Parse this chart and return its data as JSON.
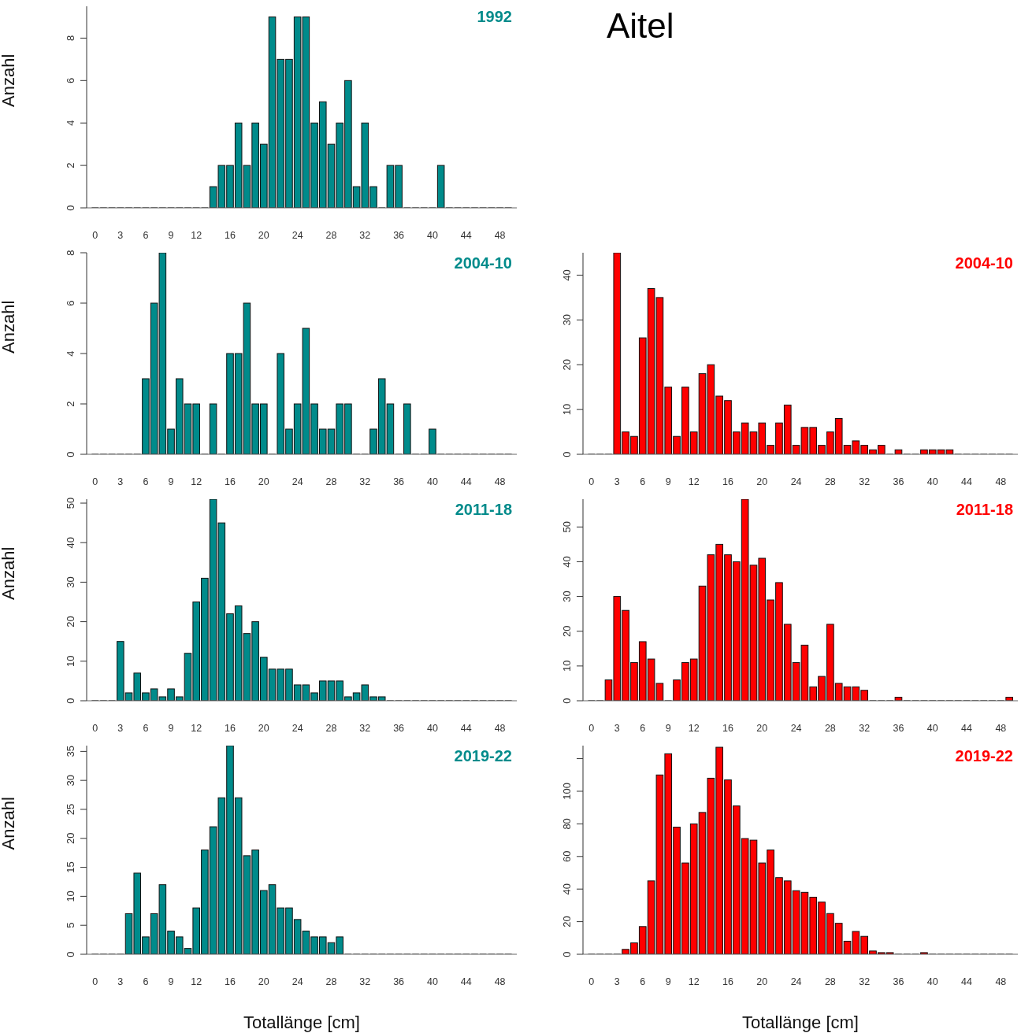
{
  "chart_data": [
    {
      "type": "bar",
      "title": "1992",
      "ylabel": "Anzahl",
      "annotations": [
        "Aitel"
      ],
      "x": [
        0,
        1,
        2,
        3,
        4,
        5,
        6,
        7,
        8,
        9,
        10,
        11,
        12,
        13,
        14,
        15,
        16,
        17,
        18,
        19,
        20,
        21,
        22,
        23,
        24,
        25,
        26,
        27,
        28,
        29,
        30,
        31,
        32,
        33,
        34,
        35,
        36,
        37,
        38,
        39,
        40,
        41,
        42,
        43,
        44,
        45,
        46,
        47,
        48,
        49
      ],
      "xlim": [
        -1,
        50
      ],
      "xticks": [
        0,
        3,
        6,
        9,
        12,
        16,
        20,
        24,
        28,
        32,
        36,
        40,
        44,
        48
      ],
      "color": "#008b8b",
      "ylim": [
        0,
        9.5
      ],
      "yticks": [
        0,
        2,
        4,
        6,
        8
      ],
      "values": [
        0,
        0,
        0,
        0,
        0,
        0,
        0,
        0,
        0,
        0,
        0,
        0,
        0,
        0,
        1,
        2,
        2,
        4,
        2,
        4,
        3,
        9,
        7,
        7,
        9,
        9,
        4,
        5,
        3,
        4,
        6,
        1,
        4,
        1,
        0,
        2,
        2,
        0,
        0,
        0,
        0,
        2,
        0,
        0,
        0,
        0,
        0,
        0,
        0,
        0
      ]
    },
    {
      "type": "bar",
      "title": "2004-10",
      "ylabel": "Anzahl",
      "x": [
        0,
        1,
        2,
        3,
        4,
        5,
        6,
        7,
        8,
        9,
        10,
        11,
        12,
        13,
        14,
        15,
        16,
        17,
        18,
        19,
        20,
        21,
        22,
        23,
        24,
        25,
        26,
        27,
        28,
        29,
        30,
        31,
        32,
        33,
        34,
        35,
        36,
        37,
        38,
        39,
        40,
        41,
        42,
        43,
        44,
        45,
        46,
        47,
        48,
        49
      ],
      "xlim": [
        -1,
        50
      ],
      "xticks": [
        0,
        3,
        6,
        9,
        12,
        16,
        20,
        24,
        28,
        32,
        36,
        40,
        44,
        48
      ],
      "color": "#008b8b",
      "ylim": [
        0,
        8
      ],
      "yticks": [
        0,
        2,
        4,
        6,
        8
      ],
      "values": [
        0,
        0,
        0,
        0,
        0,
        0,
        3,
        6,
        8,
        1,
        3,
        2,
        2,
        0,
        2,
        0,
        4,
        4,
        6,
        2,
        2,
        0,
        4,
        1,
        2,
        5,
        2,
        1,
        1,
        2,
        2,
        0,
        0,
        1,
        3,
        2,
        0,
        2,
        0,
        0,
        1,
        0,
        0,
        0,
        0,
        0,
        0,
        0,
        0,
        0
      ]
    },
    {
      "type": "bar",
      "title": "2004-10",
      "x": [
        0,
        1,
        2,
        3,
        4,
        5,
        6,
        7,
        8,
        9,
        10,
        11,
        12,
        13,
        14,
        15,
        16,
        17,
        18,
        19,
        20,
        21,
        22,
        23,
        24,
        25,
        26,
        27,
        28,
        29,
        30,
        31,
        32,
        33,
        34,
        35,
        36,
        37,
        38,
        39,
        40,
        41,
        42,
        43,
        44,
        45,
        46,
        47,
        48,
        49
      ],
      "xlim": [
        -1,
        50
      ],
      "xticks": [
        0,
        3,
        6,
        9,
        12,
        16,
        20,
        24,
        28,
        32,
        36,
        40,
        44,
        48
      ],
      "color": "#ff0000",
      "ylim": [
        0,
        45
      ],
      "yticks": [
        0,
        10,
        20,
        30,
        40
      ],
      "values": [
        0,
        0,
        0,
        45,
        5,
        4,
        26,
        37,
        35,
        15,
        4,
        15,
        5,
        18,
        20,
        13,
        12,
        5,
        7,
        5,
        7,
        2,
        7,
        11,
        2,
        6,
        6,
        2,
        5,
        8,
        2,
        3,
        2,
        1,
        2,
        0,
        1,
        0,
        0,
        1,
        1,
        1,
        1,
        0,
        0,
        0,
        0,
        0,
        0,
        0
      ]
    },
    {
      "type": "bar",
      "title": "2011-18",
      "ylabel": "Anzahl",
      "x": [
        0,
        1,
        2,
        3,
        4,
        5,
        6,
        7,
        8,
        9,
        10,
        11,
        12,
        13,
        14,
        15,
        16,
        17,
        18,
        19,
        20,
        21,
        22,
        23,
        24,
        25,
        26,
        27,
        28,
        29,
        30,
        31,
        32,
        33,
        34,
        35,
        36,
        37,
        38,
        39,
        40,
        41,
        42,
        43,
        44,
        45,
        46,
        47,
        48,
        49
      ],
      "xlim": [
        -1,
        50
      ],
      "xticks": [
        0,
        3,
        6,
        9,
        12,
        16,
        20,
        24,
        28,
        32,
        36,
        40,
        44,
        48
      ],
      "color": "#008b8b",
      "ylim": [
        0,
        51
      ],
      "yticks": [
        0,
        10,
        20,
        30,
        40,
        50
      ],
      "values": [
        0,
        0,
        0,
        15,
        2,
        7,
        2,
        3,
        1,
        3,
        1,
        12,
        25,
        31,
        51,
        45,
        22,
        24,
        17,
        20,
        11,
        8,
        8,
        8,
        4,
        4,
        2,
        5,
        5,
        5,
        1,
        2,
        4,
        1,
        1,
        0,
        0,
        0,
        0,
        0,
        0,
        0,
        0,
        0,
        0,
        0,
        0,
        0,
        0,
        0
      ]
    },
    {
      "type": "bar",
      "title": "2011-18",
      "x": [
        0,
        1,
        2,
        3,
        4,
        5,
        6,
        7,
        8,
        9,
        10,
        11,
        12,
        13,
        14,
        15,
        16,
        17,
        18,
        19,
        20,
        21,
        22,
        23,
        24,
        25,
        26,
        27,
        28,
        29,
        30,
        31,
        32,
        33,
        34,
        35,
        36,
        37,
        38,
        39,
        40,
        41,
        42,
        43,
        44,
        45,
        46,
        47,
        48,
        49
      ],
      "xlim": [
        -1,
        50
      ],
      "xticks": [
        0,
        3,
        6,
        9,
        12,
        16,
        20,
        24,
        28,
        32,
        36,
        40,
        44,
        48
      ],
      "color": "#ff0000",
      "ylim": [
        0,
        58
      ],
      "yticks": [
        0,
        10,
        20,
        30,
        40,
        50
      ],
      "values": [
        0,
        0,
        6,
        30,
        26,
        11,
        17,
        12,
        5,
        0,
        6,
        11,
        12,
        33,
        42,
        45,
        42,
        40,
        58,
        39,
        41,
        29,
        34,
        22,
        11,
        16,
        4,
        7,
        22,
        5,
        4,
        4,
        3,
        0,
        0,
        0,
        1,
        0,
        0,
        0,
        0,
        0,
        0,
        0,
        0,
        0,
        0,
        0,
        0,
        1
      ]
    },
    {
      "type": "bar",
      "title": "2019-22",
      "ylabel": "Anzahl",
      "xlabel": "Totallänge [cm]",
      "x": [
        0,
        1,
        2,
        3,
        4,
        5,
        6,
        7,
        8,
        9,
        10,
        11,
        12,
        13,
        14,
        15,
        16,
        17,
        18,
        19,
        20,
        21,
        22,
        23,
        24,
        25,
        26,
        27,
        28,
        29,
        30,
        31,
        32,
        33,
        34,
        35,
        36,
        37,
        38,
        39,
        40,
        41,
        42,
        43,
        44,
        45,
        46,
        47,
        48,
        49
      ],
      "xlim": [
        -1,
        50
      ],
      "xticks": [
        0,
        3,
        6,
        9,
        12,
        16,
        20,
        24,
        28,
        32,
        36,
        40,
        44,
        48
      ],
      "color": "#008b8b",
      "ylim": [
        0,
        36
      ],
      "yticks": [
        0,
        5,
        10,
        15,
        20,
        25,
        30,
        35
      ],
      "values": [
        0,
        0,
        0,
        0,
        7,
        14,
        3,
        7,
        12,
        4,
        3,
        1,
        8,
        18,
        22,
        27,
        36,
        27,
        17,
        18,
        11,
        12,
        8,
        8,
        6,
        4,
        3,
        3,
        2,
        3,
        0,
        0,
        0,
        0,
        0,
        0,
        0,
        0,
        0,
        0,
        0,
        0,
        0,
        0,
        0,
        0,
        0,
        0,
        0,
        0
      ]
    },
    {
      "type": "bar",
      "title": "2019-22",
      "xlabel": "Totallänge [cm]",
      "x": [
        0,
        1,
        2,
        3,
        4,
        5,
        6,
        7,
        8,
        9,
        10,
        11,
        12,
        13,
        14,
        15,
        16,
        17,
        18,
        19,
        20,
        21,
        22,
        23,
        24,
        25,
        26,
        27,
        28,
        29,
        30,
        31,
        32,
        33,
        34,
        35,
        36,
        37,
        38,
        39,
        40,
        41,
        42,
        43,
        44,
        45,
        46,
        47,
        48,
        49
      ],
      "xlim": [
        -1,
        50
      ],
      "xticks": [
        0,
        3,
        6,
        9,
        12,
        16,
        20,
        24,
        28,
        32,
        36,
        40,
        44,
        48
      ],
      "color": "#ff0000",
      "ylim": [
        0,
        128
      ],
      "yticks": [
        0,
        20,
        40,
        60,
        80,
        100,
        {
          "value": 120,
          "label": null
        }
      ],
      "values": [
        0,
        0,
        0,
        0,
        3,
        7,
        17,
        45,
        110,
        123,
        78,
        56,
        80,
        87,
        108,
        127,
        107,
        91,
        71,
        70,
        56,
        64,
        47,
        45,
        39,
        38,
        35,
        32,
        25,
        19,
        8,
        14,
        11,
        2,
        1,
        1,
        0,
        0,
        0,
        1,
        0,
        0,
        0,
        0,
        0,
        0,
        0,
        0,
        0,
        0
      ]
    }
  ]
}
